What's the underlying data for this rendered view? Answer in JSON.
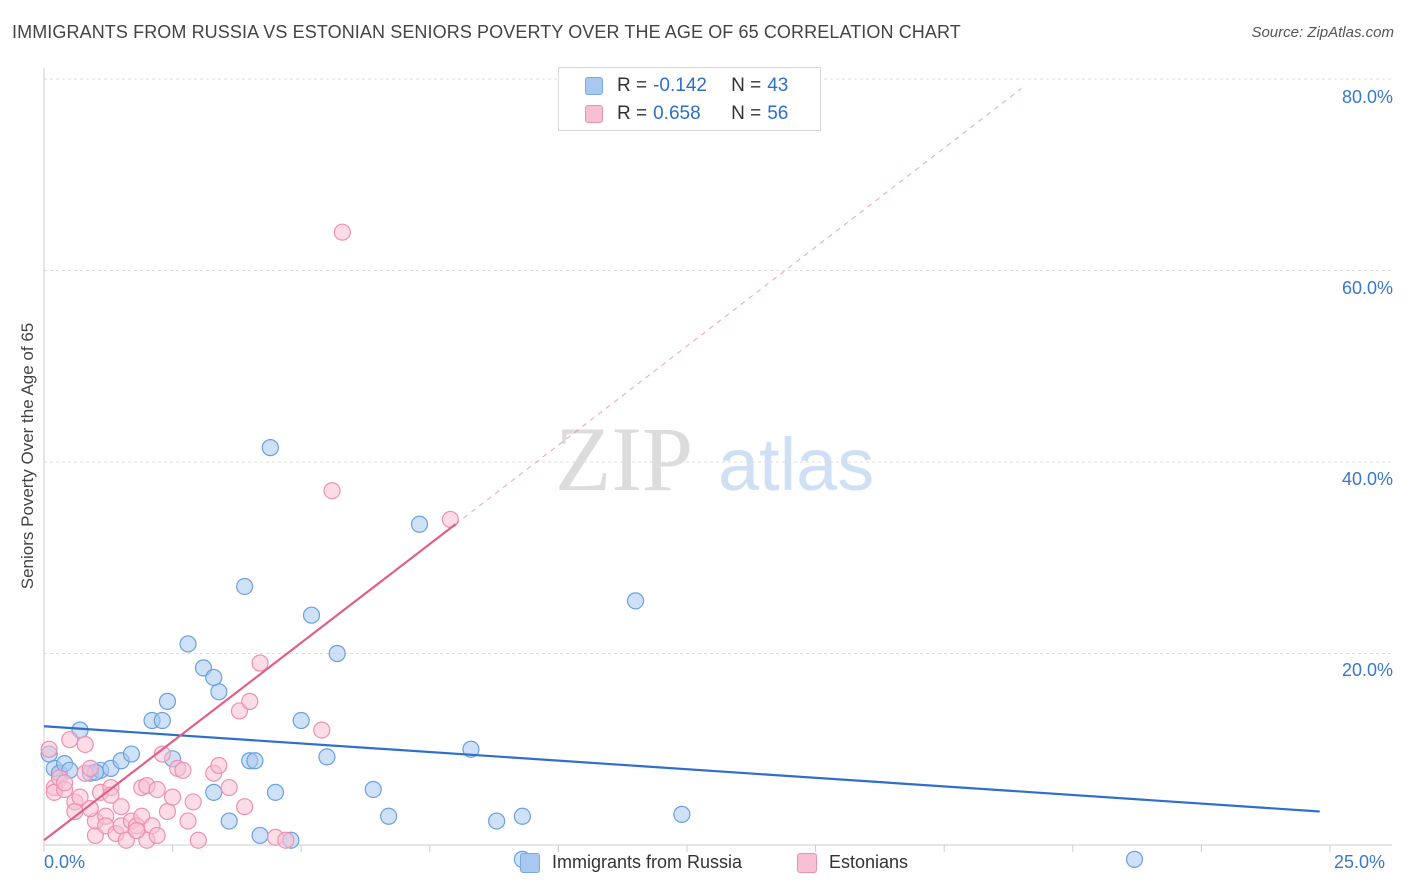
{
  "title": "IMMIGRANTS FROM RUSSIA VS ESTONIAN SENIORS POVERTY OVER THE AGE OF 65 CORRELATION CHART",
  "source": "Source: ZipAtlas.com",
  "watermark": {
    "zip": "ZIP",
    "atlas": "atlas"
  },
  "legend_top": {
    "rows": [
      {
        "r_label": "R =",
        "r_value": "-0.142",
        "n_label": "N =",
        "n_value": "43",
        "color": "#a8c8f0",
        "border": "#7aa8e0"
      },
      {
        "r_label": "R =",
        "r_value": "0.658",
        "n_label": "N =",
        "n_value": "56",
        "color": "#f8c0d4",
        "border": "#ef90b0"
      }
    ]
  },
  "chart_data": {
    "type": "scatter",
    "title": "IMMIGRANTS FROM RUSSIA VS ESTONIAN SENIORS POVERTY OVER THE AGE OF 65 CORRELATION CHART",
    "xlabel": "",
    "ylabel": "Seniors Poverty Over the Age of 65",
    "xlim": [
      0,
      25
    ],
    "ylim": [
      0,
      80
    ],
    "x_tick_labels": [
      "0.0%",
      "25.0%"
    ],
    "y_ticks": [
      20,
      40,
      60,
      80
    ],
    "y_tick_labels": [
      "20.0%",
      "40.0%",
      "60.0%",
      "80.0%"
    ],
    "grid": true,
    "legend": "bottom-center",
    "series": [
      {
        "name": "Immigrants from Russia",
        "color": "#6aa0e0",
        "fill": "#a8c8f0",
        "trend_color": "#2e6fca",
        "trend": {
          "x": [
            0,
            24.8
          ],
          "y": [
            12.4,
            3.5
          ]
        },
        "points": [
          [
            0.2,
            8.0
          ],
          [
            0.3,
            7.5
          ],
          [
            0.4,
            8.5
          ],
          [
            0.5,
            7.8
          ],
          [
            0.7,
            12.0
          ],
          [
            0.9,
            7.5
          ],
          [
            1.1,
            7.8
          ],
          [
            1.3,
            8.0
          ],
          [
            1.5,
            8.8
          ],
          [
            1.7,
            9.5
          ],
          [
            2.1,
            13.0
          ],
          [
            2.3,
            13.0
          ],
          [
            2.5,
            9.0
          ],
          [
            2.4,
            15.0
          ],
          [
            2.8,
            21.0
          ],
          [
            3.1,
            18.5
          ],
          [
            3.3,
            5.5
          ],
          [
            3.4,
            16.0
          ],
          [
            3.3,
            17.5
          ],
          [
            3.6,
            2.5
          ],
          [
            3.9,
            27.0
          ],
          [
            4.0,
            8.8
          ],
          [
            4.1,
            8.8
          ],
          [
            4.2,
            1.0
          ],
          [
            4.5,
            5.5
          ],
          [
            4.4,
            41.5
          ],
          [
            4.8,
            0.5
          ],
          [
            5.0,
            13.0
          ],
          [
            5.2,
            24.0
          ],
          [
            5.5,
            9.2
          ],
          [
            5.7,
            20.0
          ],
          [
            6.4,
            5.8
          ],
          [
            6.7,
            3.0
          ],
          [
            7.3,
            33.5
          ],
          [
            8.3,
            10.0
          ],
          [
            8.8,
            2.5
          ],
          [
            9.3,
            3.0
          ],
          [
            9.3,
            -1.5
          ],
          [
            11.5,
            25.5
          ],
          [
            12.4,
            3.2
          ],
          [
            21.2,
            -1.5
          ],
          [
            0.1,
            9.5
          ],
          [
            1.0,
            7.6
          ]
        ]
      },
      {
        "name": "Estonians",
        "color": "#ef90b0",
        "fill": "#f8c0d4",
        "trend_color": "#e0608a",
        "trend": {
          "x": [
            0,
            8.0
          ],
          "y": [
            0.5,
            33.5
          ]
        },
        "trend_ext": {
          "x": [
            8.0,
            19.0
          ],
          "y": [
            33.5,
            79.0
          ]
        },
        "points": [
          [
            0.1,
            10.0
          ],
          [
            0.2,
            6.0
          ],
          [
            0.2,
            5.5
          ],
          [
            0.3,
            7.0
          ],
          [
            0.4,
            5.8
          ],
          [
            0.5,
            11.0
          ],
          [
            0.6,
            4.5
          ],
          [
            0.6,
            3.5
          ],
          [
            0.7,
            5.0
          ],
          [
            0.8,
            10.5
          ],
          [
            0.8,
            7.5
          ],
          [
            0.9,
            8.0
          ],
          [
            1.0,
            1.0
          ],
          [
            1.0,
            2.5
          ],
          [
            1.1,
            5.5
          ],
          [
            1.2,
            3.0
          ],
          [
            1.2,
            2.0
          ],
          [
            1.3,
            6.0
          ],
          [
            1.4,
            1.2
          ],
          [
            1.5,
            4.0
          ],
          [
            1.5,
            2.0
          ],
          [
            1.6,
            0.5
          ],
          [
            1.7,
            2.5
          ],
          [
            1.8,
            2.0
          ],
          [
            1.9,
            3.0
          ],
          [
            1.9,
            6.0
          ],
          [
            2.0,
            6.2
          ],
          [
            2.0,
            0.5
          ],
          [
            2.1,
            2.0
          ],
          [
            2.2,
            1.0
          ],
          [
            2.3,
            9.5
          ],
          [
            2.4,
            3.5
          ],
          [
            2.5,
            5.0
          ],
          [
            2.6,
            8.0
          ],
          [
            2.7,
            7.8
          ],
          [
            2.8,
            2.5
          ],
          [
            2.9,
            4.5
          ],
          [
            3.0,
            0.5
          ],
          [
            3.3,
            7.5
          ],
          [
            3.6,
            6.0
          ],
          [
            3.8,
            14.0
          ],
          [
            3.9,
            4.0
          ],
          [
            4.0,
            15.0
          ],
          [
            4.2,
            19.0
          ],
          [
            4.5,
            0.8
          ],
          [
            4.7,
            0.5
          ],
          [
            5.4,
            12.0
          ],
          [
            5.8,
            64.0
          ],
          [
            5.6,
            37.0
          ],
          [
            7.9,
            34.0
          ],
          [
            0.4,
            6.5
          ],
          [
            0.9,
            3.8
          ],
          [
            1.3,
            5.2
          ],
          [
            1.8,
            1.5
          ],
          [
            3.4,
            8.3
          ],
          [
            2.2,
            5.8
          ]
        ]
      }
    ]
  }
}
